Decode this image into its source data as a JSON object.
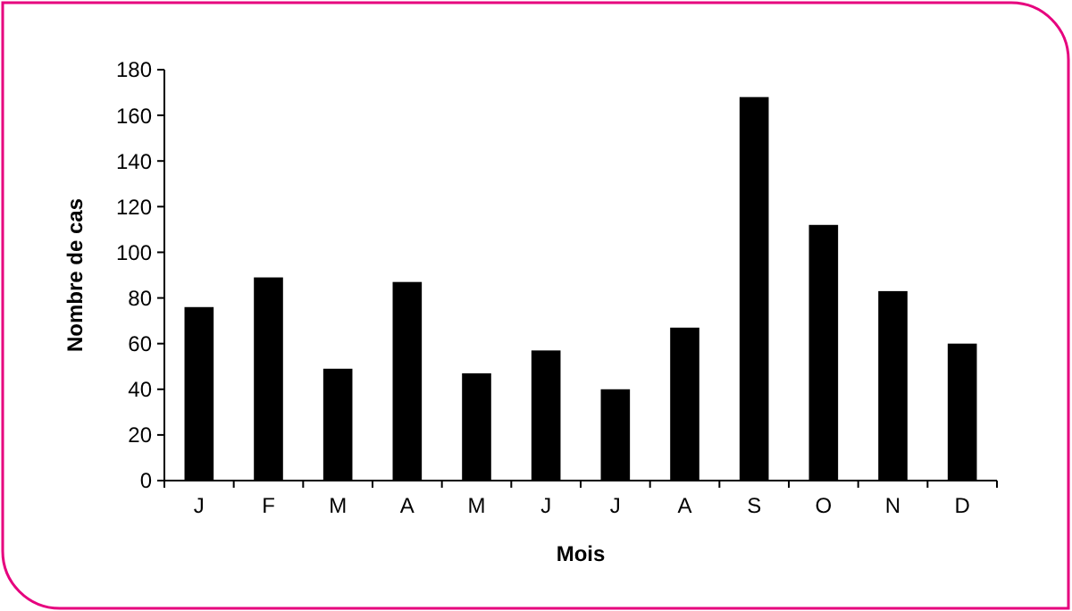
{
  "chart_data": {
    "type": "bar",
    "xlabel": "Mois",
    "ylabel": "Nombre de cas",
    "categories": [
      "J",
      "F",
      "M",
      "A",
      "M",
      "J",
      "J",
      "A",
      "S",
      "O",
      "N",
      "D"
    ],
    "values": [
      76,
      89,
      49,
      87,
      47,
      57,
      40,
      67,
      168,
      112,
      83,
      60
    ],
    "color": "#000000",
    "ylim": [
      0,
      180
    ],
    "yticks": [
      0,
      20,
      40,
      60,
      80,
      100,
      120,
      140,
      160,
      180
    ],
    "grid": false
  }
}
